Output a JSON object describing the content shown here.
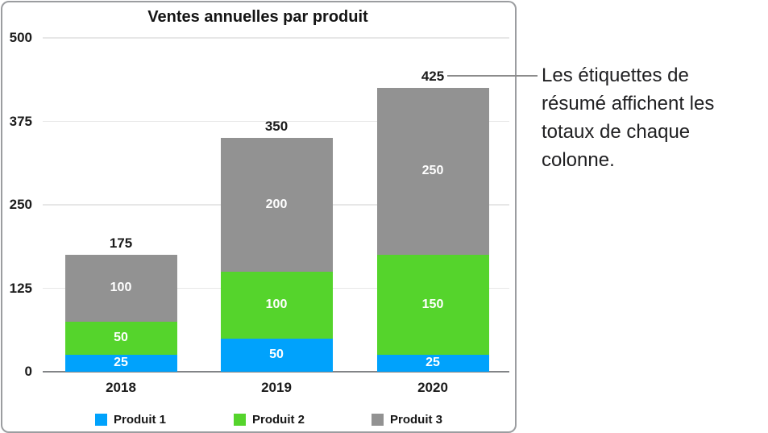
{
  "chart_data": {
    "type": "bar",
    "stacked": true,
    "title": "Ventes annuelles par produit",
    "categories": [
      "2018",
      "2019",
      "2020"
    ],
    "series": [
      {
        "name": "Produit 1",
        "color": "#00A2FC",
        "values": [
          25,
          50,
          25
        ]
      },
      {
        "name": "Produit 2",
        "color": "#55D42C",
        "values": [
          50,
          100,
          150
        ]
      },
      {
        "name": "Produit 3",
        "color": "#929292",
        "values": [
          100,
          200,
          250
        ]
      }
    ],
    "totals": [
      175,
      350,
      425
    ],
    "y_ticks": [
      0,
      125,
      250,
      375,
      500
    ],
    "ylim": [
      0,
      500
    ],
    "grid": true,
    "legend_position": "bottom",
    "value_label_color": "#ffffff",
    "gridline_color": "#e7e7e7",
    "axis_color": "#828487"
  },
  "callout": {
    "text": "Les étiquettes de résumé affichent les totaux de chaque colonne.",
    "lines": [
      "Les étiquettes de",
      "résumé affichent les",
      "totaux de chaque",
      "colonne."
    ],
    "points_to_total": "425",
    "leader_color": "#8c8c8c"
  }
}
